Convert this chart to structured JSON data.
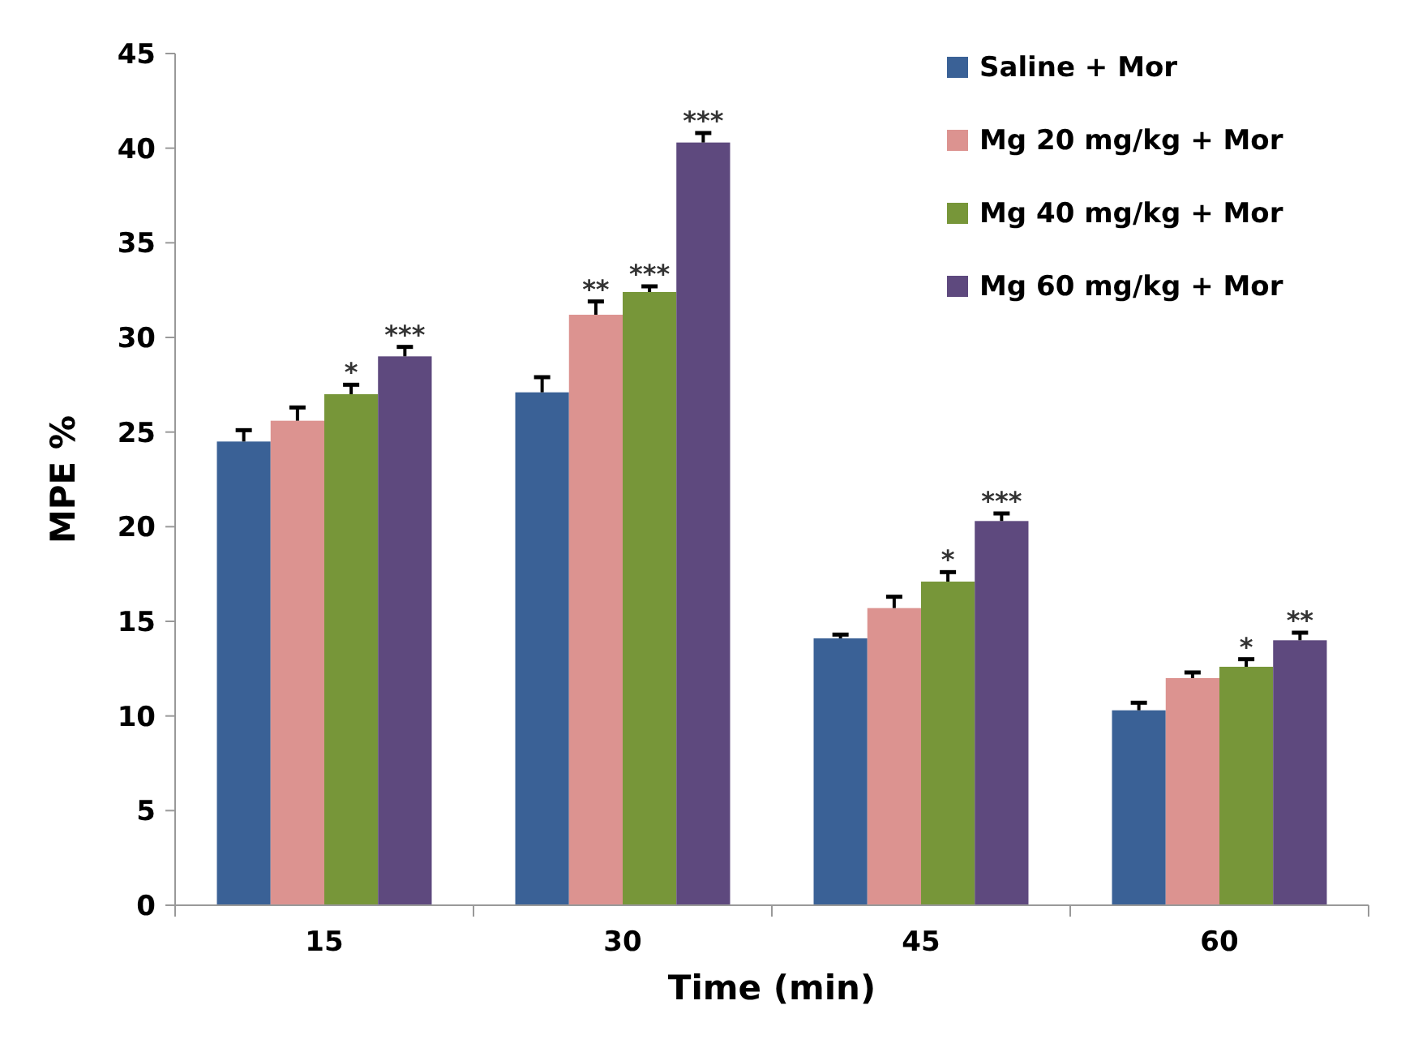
{
  "chart_data": {
    "type": "bar",
    "xlabel": "Time (min)",
    "ylabel": "MPE %",
    "categories": [
      "15",
      "30",
      "45",
      "60"
    ],
    "ylim": [
      0,
      45
    ],
    "yticks": [
      0,
      5,
      10,
      15,
      20,
      25,
      30,
      35,
      40,
      45
    ],
    "grid": false,
    "legend": "top right",
    "series": [
      {
        "name": "Saline + Mor",
        "color": "#3a6196",
        "values": [
          24.5,
          27.1,
          14.1,
          10.3
        ],
        "errors": [
          [
            24.5,
            25.1
          ],
          [
            27.1,
            27.9
          ],
          [
            14.1,
            14.3
          ],
          [
            10.3,
            10.7
          ]
        ],
        "value_labels": [
          null,
          null,
          null,
          null
        ]
      },
      {
        "name": "Mg 20 mg/kg + Mor",
        "color": "#dc9390",
        "values": [
          25.6,
          31.2,
          15.7,
          12.0
        ],
        "errors": [
          [
            25.6,
            26.3
          ],
          [
            31.2,
            31.9
          ],
          [
            15.7,
            16.3
          ],
          [
            12.0,
            12.3
          ]
        ],
        "value_labels": [
          null,
          "**",
          null,
          null
        ]
      },
      {
        "name": "Mg 40 mg/kg + Mor",
        "color": "#779639",
        "values": [
          27.0,
          32.4,
          17.1,
          12.6
        ],
        "errors": [
          [
            27.0,
            27.5
          ],
          [
            32.4,
            32.7
          ],
          [
            17.1,
            17.6
          ],
          [
            12.6,
            13.0
          ]
        ],
        "value_labels": [
          "*",
          "***",
          "*",
          "*"
        ]
      },
      {
        "name": "Mg 60 mg/kg + Mor",
        "color": "#5e497e",
        "values": [
          29.0,
          40.3,
          20.3,
          14.0
        ],
        "errors": [
          [
            29.0,
            29.5
          ],
          [
            40.3,
            40.8
          ],
          [
            20.3,
            20.7
          ],
          [
            14.0,
            14.4
          ]
        ],
        "value_labels": [
          "***",
          "***",
          "***",
          "**"
        ]
      }
    ]
  }
}
